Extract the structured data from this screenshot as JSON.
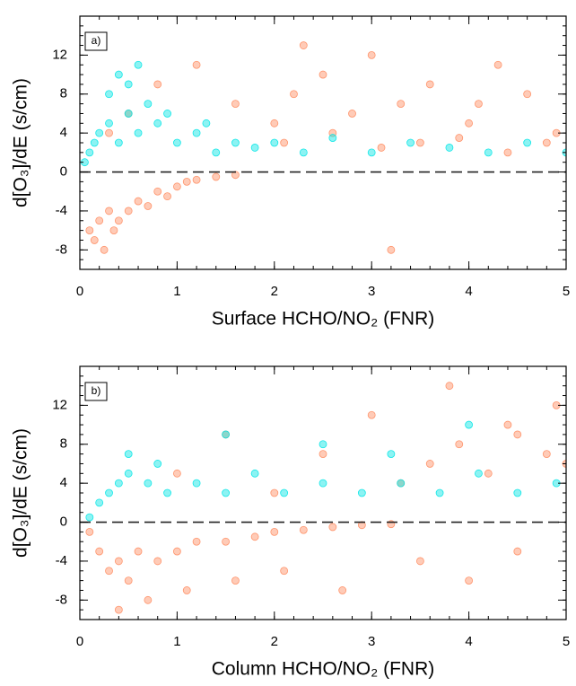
{
  "chart_data": [
    {
      "type": "scatter",
      "panel_label": "a)",
      "y_label": "d[O₃]/dE (s/cm)",
      "x_label": "Surface HCHO/NO₂ (FNR)",
      "xlim": [
        0,
        5
      ],
      "ylim": [
        -10,
        16
      ],
      "xticks": [
        0,
        1,
        2,
        3,
        4,
        5
      ],
      "yticks": [
        -8,
        -4,
        0,
        4,
        8,
        12
      ],
      "hline": 0,
      "series": [
        {
          "color": "#ff8c60",
          "x": [
            0.1,
            0.15,
            0.2,
            0.25,
            0.3,
            0.35,
            0.4,
            0.5,
            0.6,
            0.7,
            0.8,
            0.9,
            1.0,
            1.1,
            1.2,
            1.4,
            1.6,
            0.3,
            0.5,
            0.8,
            1.2,
            1.6,
            2.0,
            2.2,
            2.5,
            2.8,
            3.0,
            3.3,
            3.6,
            4.0,
            4.3,
            4.6,
            4.9,
            2.1,
            2.6,
            3.1,
            3.5,
            3.9,
            4.4,
            4.8,
            2.3,
            3.2,
            4.1
          ],
          "y": [
            -6,
            -7,
            -5,
            -8,
            -4,
            -6,
            -5,
            -4,
            -3,
            -3.5,
            -2,
            -2.5,
            -1.5,
            -1,
            -0.8,
            -0.5,
            -0.3,
            4,
            6,
            9,
            11,
            7,
            5,
            8,
            10,
            6,
            12,
            7,
            9,
            5,
            11,
            8,
            4,
            3,
            4,
            2.5,
            3,
            3.5,
            2,
            3,
            13,
            -8,
            7
          ]
        },
        {
          "color": "#00e5e5",
          "x": [
            0.05,
            0.1,
            0.15,
            0.2,
            0.3,
            0.4,
            0.5,
            0.6,
            0.7,
            0.8,
            1.0,
            1.2,
            1.4,
            1.6,
            1.8,
            2.0,
            2.3,
            2.6,
            3.0,
            3.4,
            3.8,
            4.2,
            4.6,
            5.0,
            0.3,
            0.5,
            0.6,
            0.9,
            1.3,
            0.4
          ],
          "y": [
            1,
            2,
            3,
            4,
            5,
            3,
            6,
            4,
            7,
            5,
            3,
            4,
            2,
            3,
            2.5,
            3,
            2,
            3.5,
            2,
            3,
            2.5,
            2,
            3,
            2,
            8,
            9,
            11,
            6,
            5,
            10
          ]
        }
      ]
    },
    {
      "type": "scatter",
      "panel_label": "b)",
      "y_label": "d[O₃]/dE (s/cm)",
      "x_label": "Column HCHO/NO₂ (FNR)",
      "xlim": [
        0,
        5
      ],
      "ylim": [
        -10,
        16
      ],
      "xticks": [
        0,
        1,
        2,
        3,
        4,
        5
      ],
      "yticks": [
        -8,
        -4,
        0,
        4,
        8,
        12
      ],
      "hline": 0,
      "series": [
        {
          "color": "#ff8c60",
          "x": [
            0.1,
            0.2,
            0.3,
            0.4,
            0.5,
            0.6,
            0.8,
            1.0,
            1.2,
            1.5,
            1.8,
            2.0,
            2.3,
            2.6,
            2.9,
            3.2,
            0.4,
            0.7,
            1.1,
            1.6,
            2.1,
            2.7,
            3.5,
            4.0,
            4.5,
            1.0,
            1.5,
            2.0,
            2.5,
            3.0,
            3.3,
            3.6,
            3.9,
            4.2,
            4.5,
            4.8,
            5.0,
            3.8,
            4.4,
            4.9
          ],
          "y": [
            -1,
            -3,
            -5,
            -4,
            -6,
            -3,
            -4,
            -3,
            -2,
            -2,
            -1.5,
            -1,
            -0.8,
            -0.5,
            -0.3,
            -0.2,
            -9,
            -8,
            -7,
            -6,
            -5,
            -7,
            -4,
            -6,
            -3,
            5,
            9,
            3,
            7,
            11,
            4,
            6,
            8,
            5,
            9,
            7,
            6,
            14,
            10,
            12
          ]
        },
        {
          "color": "#00e5e5",
          "x": [
            0.1,
            0.2,
            0.3,
            0.4,
            0.5,
            0.7,
            0.9,
            1.2,
            1.5,
            1.8,
            2.1,
            2.5,
            2.9,
            3.3,
            3.7,
            4.1,
            4.5,
            4.9,
            0.5,
            0.8,
            1.5,
            2.5,
            3.2,
            4.0
          ],
          "y": [
            0.5,
            2,
            3,
            4,
            5,
            4,
            3,
            4,
            3,
            5,
            3,
            4,
            3,
            4,
            3,
            5,
            3,
            4,
            7,
            6,
            9,
            8,
            7,
            10
          ]
        }
      ]
    }
  ]
}
